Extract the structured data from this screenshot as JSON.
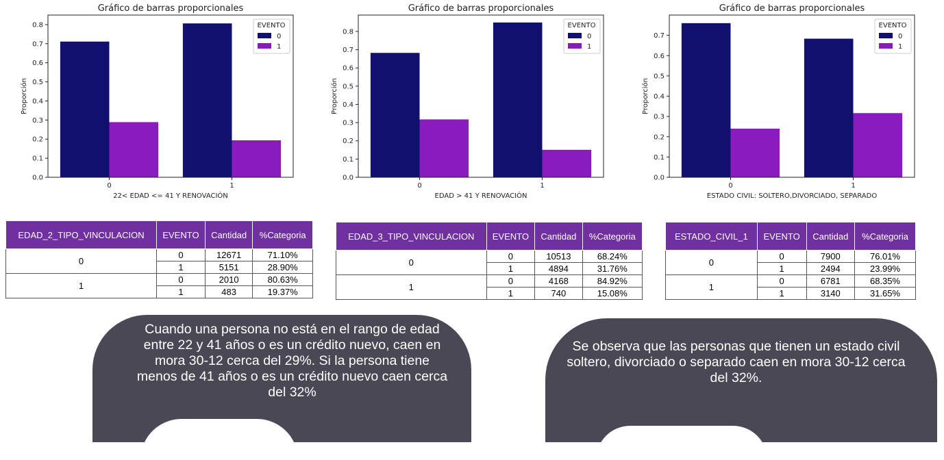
{
  "chart_data": [
    {
      "type": "bar",
      "title": "Gráfico de barras proporcionales",
      "xlabel": "22< EDAD <= 41 Y RENOVACIÓN",
      "ylabel": "Proporción",
      "categories": [
        "0",
        "1"
      ],
      "series": [
        {
          "name": "0",
          "values": [
            0.711,
            0.8063
          ]
        },
        {
          "name": "1",
          "values": [
            0.289,
            0.1937
          ]
        }
      ],
      "ylim": [
        0,
        0.85
      ],
      "yticks": [
        "0.0",
        "0.1",
        "0.2",
        "0.3",
        "0.4",
        "0.5",
        "0.6",
        "0.7",
        "0.8"
      ],
      "legend_title": "EVENTO",
      "legend_position": "top-right",
      "colors": [
        "#10106e",
        "#8a1bbf"
      ]
    },
    {
      "type": "bar",
      "title": "Gráfico de barras proporcionales",
      "xlabel": "EDAD > 41 Y RENOVACIÓN",
      "ylabel": "Proporción",
      "categories": [
        "0",
        "1"
      ],
      "series": [
        {
          "name": "0",
          "values": [
            0.6824,
            0.8492
          ]
        },
        {
          "name": "1",
          "values": [
            0.3176,
            0.1508
          ]
        }
      ],
      "ylim": [
        0,
        0.89
      ],
      "yticks": [
        "0.0",
        "0.1",
        "0.2",
        "0.3",
        "0.4",
        "0.5",
        "0.6",
        "0.7",
        "0.8"
      ],
      "legend_title": "EVENTO",
      "legend_position": "top-right",
      "colors": [
        "#10106e",
        "#8a1bbf"
      ]
    },
    {
      "type": "bar",
      "title": "Gráfico de barras proporcionales",
      "xlabel": "ESTADO CIVIL: SOLTERO,DIVORCIADO, SEPARADO",
      "ylabel": "Proporción",
      "categories": [
        "0",
        "1"
      ],
      "series": [
        {
          "name": "0",
          "values": [
            0.7601,
            0.6835
          ]
        },
        {
          "name": "1",
          "values": [
            0.2399,
            0.3165
          ]
        }
      ],
      "ylim": [
        0,
        0.8
      ],
      "yticks": [
        "0.0",
        "0.1",
        "0.2",
        "0.3",
        "0.4",
        "0.5",
        "0.6",
        "0.7"
      ],
      "legend_title": "EVENTO",
      "legend_position": "top-right",
      "colors": [
        "#10106e",
        "#8a1bbf"
      ]
    }
  ],
  "tables": [
    {
      "headers": [
        "EDAD_2_TIPO_VINCULACION",
        "EVENTO",
        "Cantidad",
        "%Categoria"
      ],
      "groups": [
        {
          "label": "0",
          "rows": [
            {
              "evento": "0",
              "cantidad": "12671",
              "pct": "71.10%"
            },
            {
              "evento": "1",
              "cantidad": "5151",
              "pct": "28.90%"
            }
          ]
        },
        {
          "label": "1",
          "rows": [
            {
              "evento": "0",
              "cantidad": "2010",
              "pct": "80.63%"
            },
            {
              "evento": "1",
              "cantidad": "483",
              "pct": "19.37%"
            }
          ]
        }
      ]
    },
    {
      "headers": [
        "EDAD_3_TIPO_VINCULACION",
        "EVENTO",
        "Cantidad",
        "%Categoria"
      ],
      "groups": [
        {
          "label": "0",
          "rows": [
            {
              "evento": "0",
              "cantidad": "10513",
              "pct": "68.24%"
            },
            {
              "evento": "1",
              "cantidad": "4894",
              "pct": "31.76%"
            }
          ]
        },
        {
          "label": "1",
          "rows": [
            {
              "evento": "0",
              "cantidad": "4168",
              "pct": "84.92%"
            },
            {
              "evento": "1",
              "cantidad": "740",
              "pct": "15.08%"
            }
          ]
        }
      ]
    },
    {
      "headers": [
        "ESTADO_CIVIL_1",
        "EVENTO",
        "Cantidad",
        "%Categoria"
      ],
      "groups": [
        {
          "label": "0",
          "rows": [
            {
              "evento": "0",
              "cantidad": "7900",
              "pct": "76.01%"
            },
            {
              "evento": "1",
              "cantidad": "2494",
              "pct": "23.99%"
            }
          ]
        },
        {
          "label": "1",
          "rows": [
            {
              "evento": "0",
              "cantidad": "6781",
              "pct": "68.35%"
            },
            {
              "evento": "1",
              "cantidad": "3140",
              "pct": "31.65%"
            }
          ]
        }
      ]
    }
  ],
  "bubbles": {
    "left": "Cuando una persona no está en el rango de edad entre 22 y 41 años o es un crédito nuevo, caen en mora 30-12 cerca del 29%. Si la persona tiene menos de 41 años o es un crédito nuevo caen cerca del 32%",
    "right": "Se observa que las personas que tienen un estado civil soltero, divorciado o separado caen en mora 30-12 cerca del 32%."
  }
}
